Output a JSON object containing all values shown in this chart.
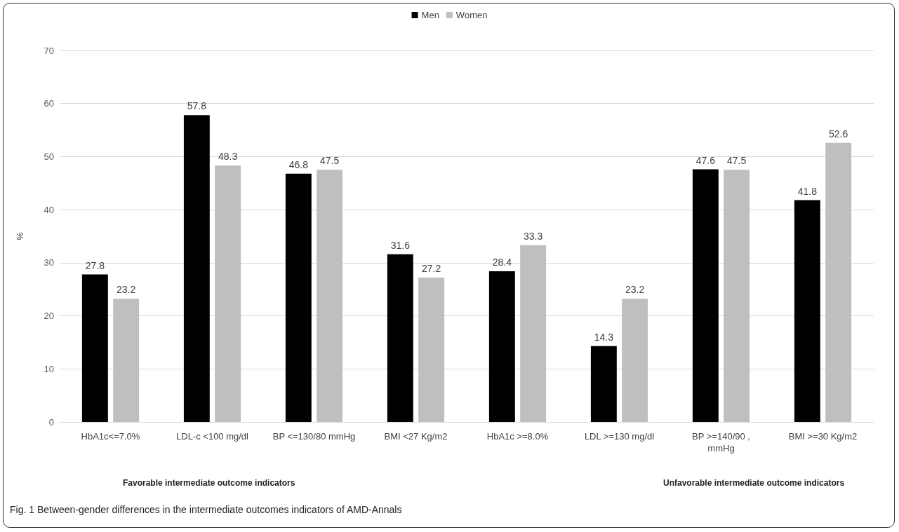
{
  "chart_data": {
    "type": "bar",
    "categories": [
      "HbA1c<=7.0%",
      "LDL-c <100 mg/dl",
      "BP <=130/80 mmHg",
      "BMI <27 Kg/m2",
      "HbA1c >=8.0%",
      "LDL >=130 mg/dl",
      "BP >=140/90 ,mmHg",
      "BMI >=30 Kg/m2"
    ],
    "series": [
      {
        "name": "Men",
        "color": "#000000",
        "values": [
          27.8,
          57.8,
          46.8,
          31.6,
          28.4,
          14.3,
          47.6,
          41.8
        ]
      },
      {
        "name": "Women",
        "color": "#bfbfbf",
        "values": [
          23.2,
          48.3,
          47.5,
          27.2,
          33.3,
          23.2,
          47.5,
          52.6
        ]
      }
    ],
    "ylabel": "%",
    "ylim": [
      0,
      70
    ],
    "yticks": [
      0,
      10,
      20,
      30,
      40,
      50,
      60,
      70
    ],
    "grid": "y",
    "legend": "top",
    "data_labels": true,
    "annotations": [
      "Favorable intermediate outcome indicators",
      "Unfavorable intermediate outcome indicators",
      "Fig. 1 Between-gender differences in the intermediate outcomes indicators of AMD-Annals"
    ]
  }
}
